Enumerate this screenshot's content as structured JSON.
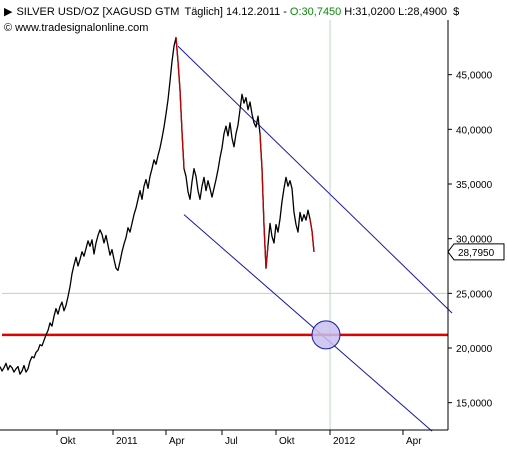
{
  "header": {
    "symbol_text": "SILVER USD/OZ [XAGUSD GTM",
    "interval": "Täglich]",
    "date": "14.12.2011",
    "change_prefix": "-",
    "change_value": "O:30,7450",
    "high_low": "H:31,0200 L:28,4900",
    "currency": "$",
    "source": "www.tradesignalonline.com",
    "copyright_symbol": "©"
  },
  "colors": {
    "price": "#000000",
    "down_segment": "#c00000",
    "channel": "#1a1aa8",
    "support": "#e00000",
    "circle_fill": "#c8c0ee",
    "grid": "#b8d8b8",
    "last_box_bg": "#ffffff"
  },
  "chart_data": {
    "type": "line",
    "title": "SILVER USD/OZ [XAGUSD GTM Täglich]",
    "xlabel": "",
    "ylabel": "",
    "ylim": [
      12500,
      50000
    ],
    "grid": true,
    "y_ticks": [
      "15,0000",
      "20,0000",
      "25,0000",
      "30,0000",
      "35,0000",
      "40,0000",
      "45,0000"
    ],
    "y_tick_values": [
      15000,
      20000,
      25000,
      30000,
      35000,
      40000,
      45000
    ],
    "x_ticks": [
      "Okt",
      "2011",
      "Apr",
      "Jul",
      "Okt",
      "2012",
      "Apr"
    ],
    "last_value_label": "28,7950",
    "last_value": 28795,
    "series": [
      {
        "values": [
          [
            0,
            18.3
          ],
          [
            2,
            17.9
          ],
          [
            4,
            18.2
          ],
          [
            6,
            18.6
          ],
          [
            8,
            18.0
          ],
          [
            10,
            18.4
          ],
          [
            12,
            18.2
          ],
          [
            14,
            17.8
          ],
          [
            16,
            18.1
          ],
          [
            18,
            18.3
          ],
          [
            20,
            17.6
          ],
          [
            22,
            17.9
          ],
          [
            24,
            18.4
          ],
          [
            26,
            17.8
          ],
          [
            28,
            18.1
          ],
          [
            30,
            18.8
          ],
          [
            32,
            19.2
          ],
          [
            34,
            19.1
          ],
          [
            36,
            19.6
          ],
          [
            38,
            19.8
          ],
          [
            40,
            20.3
          ],
          [
            42,
            20.2
          ],
          [
            44,
            20.7
          ],
          [
            46,
            21.2
          ],
          [
            48,
            21.6
          ],
          [
            50,
            22.3
          ],
          [
            52,
            22.0
          ],
          [
            54,
            22.9
          ],
          [
            56,
            23.6
          ],
          [
            58,
            23.1
          ],
          [
            60,
            23.8
          ],
          [
            62,
            24.2
          ],
          [
            64,
            23.4
          ],
          [
            66,
            23.9
          ],
          [
            68,
            24.7
          ],
          [
            70,
            25.6
          ],
          [
            72,
            26.8
          ],
          [
            74,
            27.6
          ],
          [
            76,
            28.3
          ],
          [
            78,
            27.5
          ],
          [
            80,
            28.1
          ],
          [
            82,
            28.8
          ],
          [
            84,
            28.4
          ],
          [
            86,
            29.1
          ],
          [
            88,
            29.8
          ],
          [
            90,
            29.3
          ],
          [
            92,
            29.9
          ],
          [
            94,
            28.6
          ],
          [
            96,
            29.6
          ],
          [
            98,
            30.3
          ],
          [
            100,
            30.8
          ],
          [
            102,
            30.4
          ],
          [
            104,
            29.6
          ],
          [
            106,
            30.3
          ],
          [
            108,
            29.4
          ],
          [
            110,
            28.5
          ],
          [
            112,
            29.0
          ],
          [
            114,
            28.1
          ],
          [
            116,
            27.3
          ],
          [
            118,
            27.1
          ],
          [
            120,
            27.9
          ],
          [
            122,
            28.8
          ],
          [
            124,
            29.5
          ],
          [
            126,
            30.1
          ],
          [
            128,
            31.0
          ],
          [
            130,
            30.6
          ],
          [
            132,
            31.4
          ],
          [
            134,
            32.2
          ],
          [
            136,
            32.8
          ],
          [
            138,
            33.6
          ],
          [
            140,
            34.4
          ],
          [
            142,
            33.6
          ],
          [
            144,
            34.8
          ],
          [
            146,
            35.4
          ],
          [
            148,
            34.6
          ],
          [
            150,
            35.7
          ],
          [
            152,
            36.4
          ],
          [
            154,
            37.2
          ],
          [
            156,
            36.8
          ],
          [
            158,
            37.6
          ],
          [
            160,
            38.3
          ],
          [
            162,
            39.2
          ],
          [
            164,
            40.2
          ],
          [
            166,
            41.4
          ],
          [
            168,
            42.7
          ],
          [
            170,
            44.4
          ],
          [
            172,
            46.2
          ],
          [
            174,
            47.6
          ],
          [
            176,
            48.4
          ],
          [
            178,
            46.2
          ],
          [
            180,
            43.6
          ],
          [
            182,
            39.8
          ],
          [
            184,
            36.4
          ],
          [
            186,
            35.7
          ],
          [
            188,
            34.3
          ],
          [
            190,
            33.6
          ],
          [
            192,
            35.2
          ],
          [
            194,
            36.4
          ],
          [
            196,
            35.7
          ],
          [
            198,
            34.4
          ],
          [
            200,
            33.6
          ],
          [
            202,
            34.8
          ],
          [
            204,
            35.6
          ],
          [
            206,
            34.4
          ],
          [
            208,
            35.3
          ],
          [
            210,
            34.6
          ],
          [
            212,
            33.8
          ],
          [
            214,
            34.6
          ],
          [
            216,
            35.4
          ],
          [
            218,
            36.3
          ],
          [
            220,
            37.4
          ],
          [
            222,
            38.3
          ],
          [
            224,
            39.6
          ],
          [
            226,
            40.3
          ],
          [
            228,
            39.4
          ],
          [
            230,
            40.6
          ],
          [
            232,
            39.2
          ],
          [
            234,
            38.4
          ],
          [
            236,
            39.6
          ],
          [
            238,
            40.4
          ],
          [
            240,
            41.8
          ],
          [
            242,
            43.2
          ],
          [
            244,
            42.4
          ],
          [
            246,
            42.9
          ],
          [
            248,
            41.8
          ],
          [
            250,
            42.5
          ],
          [
            252,
            41.4
          ],
          [
            254,
            40.6
          ],
          [
            256,
            40.2
          ],
          [
            258,
            41.2
          ],
          [
            260,
            39.6
          ],
          [
            262,
            36.4
          ],
          [
            264,
            31.2
          ],
          [
            266,
            27.3
          ],
          [
            268,
            29.4
          ],
          [
            270,
            31.4
          ],
          [
            272,
            30.2
          ],
          [
            274,
            29.6
          ],
          [
            276,
            31.3
          ],
          [
            278,
            30.6
          ],
          [
            280,
            31.8
          ],
          [
            282,
            33.4
          ],
          [
            284,
            34.6
          ],
          [
            286,
            35.6
          ],
          [
            288,
            34.8
          ],
          [
            290,
            35.3
          ],
          [
            292,
            34.6
          ],
          [
            294,
            32.4
          ],
          [
            296,
            31.3
          ],
          [
            298,
            30.6
          ],
          [
            300,
            32.4
          ],
          [
            302,
            31.6
          ],
          [
            304,
            32.2
          ],
          [
            306,
            31.7
          ],
          [
            308,
            32.6
          ],
          [
            310,
            31.8
          ],
          [
            312,
            30.7
          ],
          [
            314,
            28.8
          ]
        ]
      }
    ],
    "annotations": {
      "channel_upper": [
        [
          178,
          47600
        ],
        [
          452,
          23200
        ]
      ],
      "channel_lower": [
        [
          184,
          32200
        ],
        [
          432,
          12400
        ]
      ],
      "support_level": 21200,
      "circle_center": [
        326,
        21200
      ]
    }
  }
}
